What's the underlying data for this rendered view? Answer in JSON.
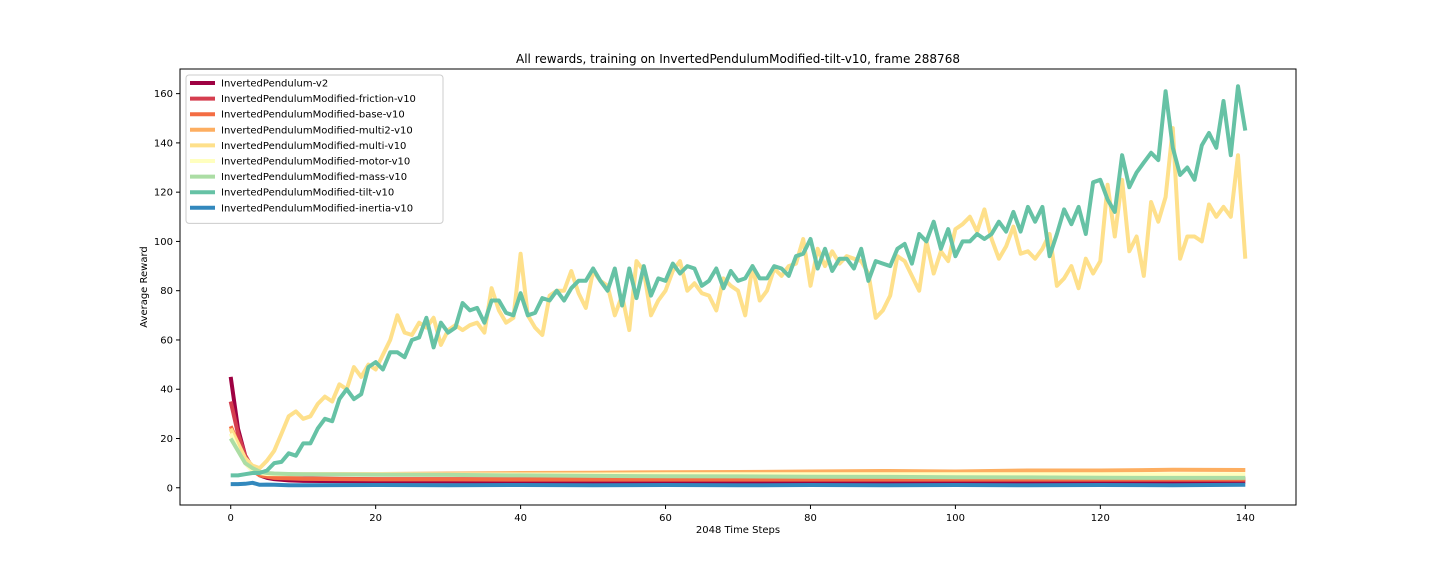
{
  "chart_data": {
    "type": "line",
    "title": "All rewards, training on InvertedPendulumModified-tilt-v10, frame 288768",
    "xlabel": "2048 Time Steps",
    "ylabel": "Average Reward",
    "xlim": [
      -7,
      147
    ],
    "ylim": [
      -7,
      170
    ],
    "x_ticks": [
      0,
      20,
      40,
      60,
      80,
      100,
      120,
      140
    ],
    "y_ticks": [
      0,
      20,
      40,
      60,
      80,
      100,
      120,
      140,
      160
    ],
    "grid": false,
    "legend_position": "top-left",
    "series": [
      {
        "name": "InvertedPendulum-v2",
        "color": "#9e0142",
        "x": [
          0,
          1,
          2,
          3,
          4,
          5,
          6,
          8,
          10,
          15,
          20,
          30,
          40,
          50,
          60,
          70,
          80,
          90,
          100,
          110,
          120,
          130,
          140
        ],
        "values": [
          45,
          24,
          13,
          8,
          5,
          4,
          3.5,
          3,
          2.8,
          2.7,
          2.6,
          2.6,
          2.5,
          2.5,
          2.5,
          2.5,
          2.5,
          2.5,
          2.5,
          2.5,
          2.5,
          2.5,
          2.5
        ]
      },
      {
        "name": "InvertedPendulumModified-friction-v10",
        "color": "#d53e4f",
        "x": [
          0,
          1,
          2,
          3,
          4,
          5,
          6,
          8,
          10,
          15,
          20,
          30,
          40,
          50,
          60,
          70,
          80,
          90,
          100,
          110,
          120,
          130,
          140
        ],
        "values": [
          35,
          22,
          13,
          8,
          6,
          5,
          4.5,
          4,
          3.8,
          3.6,
          3.5,
          3.5,
          3.5,
          3.5,
          3.5,
          3.5,
          3.5,
          3.5,
          3.5,
          3.5,
          3.5,
          3.5,
          3.5
        ]
      },
      {
        "name": "InvertedPendulumModified-base-v10",
        "color": "#f46d43",
        "x": [
          0,
          1,
          2,
          3,
          4,
          5,
          6,
          8,
          10,
          15,
          20,
          30,
          40,
          50,
          60,
          70,
          80,
          90,
          100,
          110,
          120,
          130,
          140
        ],
        "values": [
          25,
          18,
          11,
          7,
          5,
          4.5,
          4,
          3.8,
          3.6,
          3.5,
          3.4,
          3.4,
          3.3,
          3.3,
          3.3,
          3.3,
          3.3,
          3.3,
          3.3,
          3.3,
          3.3,
          3.3,
          3.3
        ]
      },
      {
        "name": "InvertedPendulumModified-multi2-v10",
        "color": "#fdae61",
        "x": [
          0,
          1,
          2,
          3,
          4,
          5,
          10,
          20,
          30,
          40,
          50,
          60,
          70,
          80,
          90,
          100,
          110,
          120,
          130,
          140
        ],
        "values": [
          24,
          16,
          10,
          7,
          6,
          5.5,
          5.5,
          5.6,
          5.8,
          6,
          6.1,
          6.3,
          6.4,
          6.6,
          6.8,
          6.6,
          7,
          7,
          7.3,
          7.2
        ]
      },
      {
        "name": "InvertedPendulumModified-multi-v10",
        "color": "#fee08b",
        "x": [
          0,
          1,
          2,
          3,
          4,
          5,
          6,
          7,
          8,
          9,
          10,
          11,
          12,
          13,
          14,
          15,
          16,
          17,
          18,
          19,
          20,
          21,
          22,
          23,
          24,
          25,
          26,
          27,
          28,
          29,
          30,
          31,
          32,
          33,
          34,
          35,
          36,
          37,
          38,
          39,
          40,
          41,
          42,
          43,
          44,
          45,
          46,
          47,
          48,
          49,
          50,
          51,
          52,
          53,
          54,
          55,
          56,
          57,
          58,
          59,
          60,
          61,
          62,
          63,
          64,
          65,
          66,
          67,
          68,
          69,
          70,
          71,
          72,
          73,
          74,
          75,
          76,
          77,
          78,
          79,
          80,
          81,
          82,
          83,
          84,
          85,
          86,
          87,
          88,
          89,
          90,
          91,
          92,
          93,
          94,
          95,
          96,
          97,
          98,
          99,
          100,
          101,
          102,
          103,
          104,
          105,
          106,
          107,
          108,
          109,
          110,
          111,
          112,
          113,
          114,
          115,
          116,
          117,
          118,
          119,
          120,
          121,
          122,
          123,
          124,
          125,
          126,
          127,
          128,
          129,
          130,
          131,
          132,
          133,
          134,
          135,
          136,
          137,
          138,
          139,
          140
        ],
        "values": [
          24,
          18,
          12,
          9,
          8,
          11,
          15,
          22,
          29,
          31,
          28,
          29,
          34,
          37,
          35,
          42,
          40,
          49,
          45,
          50,
          48,
          54,
          60,
          70,
          63,
          62,
          67,
          65,
          69,
          58,
          64,
          66,
          64,
          66,
          67,
          63,
          81,
          72,
          67,
          69,
          95,
          70,
          65,
          62,
          78,
          80,
          80,
          88,
          79,
          73,
          88,
          84,
          82,
          70,
          78,
          64,
          92,
          88,
          70,
          76,
          80,
          88,
          92,
          80,
          83,
          79,
          78,
          72,
          85,
          82,
          80,
          70,
          90,
          76,
          80,
          89,
          86,
          90,
          91,
          101,
          82,
          97,
          90,
          96,
          91,
          94,
          93,
          92,
          87,
          69,
          72,
          78,
          94,
          92,
          86,
          80,
          100,
          87,
          96,
          92,
          105,
          107,
          110,
          104,
          113,
          101,
          93,
          98,
          106,
          95,
          96,
          93,
          97,
          103,
          82,
          85,
          90,
          81,
          93,
          87,
          92,
          123,
          102,
          125,
          96,
          102,
          86,
          116,
          108,
          118,
          146,
          93,
          102,
          102,
          100,
          115,
          110,
          114,
          110,
          135,
          93
        ]
      },
      {
        "name": "InvertedPendulumModified-motor-v10",
        "color": "#ffffbf",
        "x": [
          0,
          1,
          2,
          3,
          4,
          5,
          10,
          20,
          30,
          40,
          50,
          60,
          70,
          80,
          90,
          100,
          110,
          120,
          130,
          140
        ],
        "values": [
          22,
          15,
          10,
          7,
          6,
          5.6,
          5.5,
          5.5,
          5.4,
          5.4,
          5.4,
          5.5,
          5.5,
          5.5,
          5.5,
          5.5,
          5.5,
          5.5,
          5.5,
          5.5
        ]
      },
      {
        "name": "InvertedPendulumModified-mass-v10",
        "color": "#abdda4",
        "x": [
          0,
          1,
          2,
          3,
          4,
          5,
          6,
          8,
          10,
          15,
          20,
          30,
          40,
          50,
          60,
          70,
          80,
          90,
          100,
          110,
          120,
          130,
          140
        ],
        "values": [
          20,
          15,
          10,
          8,
          6.5,
          6,
          5.8,
          5.6,
          5.5,
          5.4,
          5.3,
          5.2,
          5,
          4.8,
          4.7,
          4.6,
          4.5,
          4.4,
          4.3,
          4.2,
          4.1,
          4,
          4
        ]
      },
      {
        "name": "InvertedPendulumModified-tilt-v10",
        "color": "#66c2a5",
        "x": [
          0,
          1,
          2,
          3,
          4,
          5,
          6,
          7,
          8,
          9,
          10,
          11,
          12,
          13,
          14,
          15,
          16,
          17,
          18,
          19,
          20,
          21,
          22,
          23,
          24,
          25,
          26,
          27,
          28,
          29,
          30,
          31,
          32,
          33,
          34,
          35,
          36,
          37,
          38,
          39,
          40,
          41,
          42,
          43,
          44,
          45,
          46,
          47,
          48,
          49,
          50,
          51,
          52,
          53,
          54,
          55,
          56,
          57,
          58,
          59,
          60,
          61,
          62,
          63,
          64,
          65,
          66,
          67,
          68,
          69,
          70,
          71,
          72,
          73,
          74,
          75,
          76,
          77,
          78,
          79,
          80,
          81,
          82,
          83,
          84,
          85,
          86,
          87,
          88,
          89,
          90,
          91,
          92,
          93,
          94,
          95,
          96,
          97,
          98,
          99,
          100,
          101,
          102,
          103,
          104,
          105,
          106,
          107,
          108,
          109,
          110,
          111,
          112,
          113,
          114,
          115,
          116,
          117,
          118,
          119,
          120,
          121,
          122,
          123,
          124,
          125,
          126,
          127,
          128,
          129,
          130,
          131,
          132,
          133,
          134,
          135,
          136,
          137,
          138,
          139,
          140
        ],
        "values": [
          5,
          5,
          5.5,
          6,
          6,
          7,
          10,
          10.5,
          14,
          13,
          18,
          18,
          24,
          28,
          27,
          36,
          40,
          36,
          38,
          49,
          51,
          48,
          55,
          55,
          53,
          60,
          61,
          69,
          57,
          67,
          63,
          65,
          75,
          72,
          73,
          67,
          76,
          76,
          71,
          70,
          79,
          70,
          71,
          77,
          76,
          80,
          76,
          81,
          84,
          84,
          89,
          84,
          80,
          89,
          74,
          89,
          77,
          90,
          78,
          85,
          84,
          91,
          87,
          90,
          89,
          82,
          84,
          89,
          81,
          88,
          84,
          85,
          90,
          85,
          85,
          90,
          89,
          86,
          94,
          95,
          101,
          89,
          97,
          88,
          93,
          93,
          89,
          97,
          84,
          92,
          91,
          90,
          97,
          99,
          91,
          103,
          100,
          108,
          97,
          105,
          94,
          100,
          100,
          103,
          101,
          103,
          108,
          104,
          112,
          104,
          114,
          108,
          114,
          94,
          103,
          113,
          107,
          114,
          103,
          124,
          125,
          117,
          112,
          135,
          122,
          128,
          132,
          136,
          133,
          161,
          138,
          127,
          130,
          125,
          139,
          144,
          138,
          157,
          135,
          163,
          145
        ]
      },
      {
        "name": "InvertedPendulumModified-inertia-v10",
        "color": "#3288bd",
        "x": [
          0,
          1,
          2,
          3,
          4,
          5,
          6,
          8,
          10,
          20,
          30,
          40,
          50,
          60,
          70,
          80,
          90,
          100,
          110,
          120,
          130,
          140
        ],
        "values": [
          1.5,
          1.5,
          1.6,
          2,
          1.2,
          1.3,
          1.2,
          1,
          1,
          1.1,
          1,
          1.1,
          1,
          1.1,
          1,
          1.1,
          1,
          1.1,
          1,
          1.1,
          1,
          1.2
        ]
      }
    ]
  }
}
